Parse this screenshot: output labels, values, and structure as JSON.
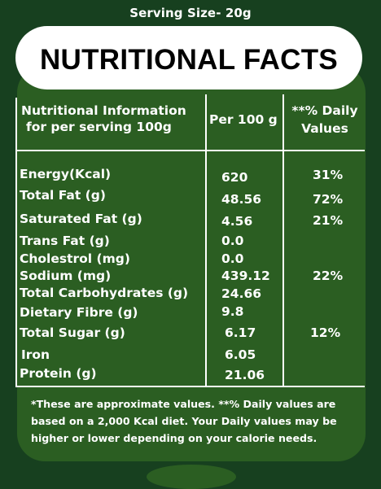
{
  "serving_size": "Serving Size- 20g",
  "title": "NUTRITIONAL FACTS",
  "table": {
    "header": {
      "col1_line1": "Nutritional Information",
      "col1_line2": "for per serving 100g",
      "col2": "Per 100 g",
      "col3_line1": "**% Daily",
      "col3_line2": "Values"
    },
    "rows": [
      {
        "name": "Energy(Kcal)",
        "value": "620",
        "daily": "31%"
      },
      {
        "name": "Total Fat (g)",
        "value": "48.56",
        "daily": "72%"
      },
      {
        "name": "Saturated Fat (g)",
        "value": "4.56",
        "daily": "21%"
      },
      {
        "name": "Trans Fat (g)",
        "value": "0.0",
        "daily": ""
      },
      {
        "name": "Cholestrol (mg)",
        "value": "0.0",
        "daily": ""
      },
      {
        "name": "Sodium (mg)",
        "value": "439.12",
        "daily": "22%"
      },
      {
        "name": "Total Carbohydrates (g)",
        "value": "24.66",
        "daily": ""
      },
      {
        "name": "Dietary Fibre (g)",
        "value": "9.8",
        "daily": ""
      },
      {
        "name": "Total Sugar (g)",
        "value": "6.17",
        "daily": "12%"
      },
      {
        "name": "Iron",
        "value": "6.05",
        "daily": ""
      },
      {
        "name": "Protein (g)",
        "value": "21.06",
        "daily": ""
      }
    ]
  },
  "footnote": {
    "line1": "*These are approximate values.  **% Daily values are",
    "line2": "based on a 2,000 Kcal diet. Your Daily values may be",
    "line3": "higher or lower depending on your calorie needs."
  },
  "colors": {
    "background": "#17401f",
    "panel": "#2b5e22",
    "title_pill": "#ffffff"
  }
}
